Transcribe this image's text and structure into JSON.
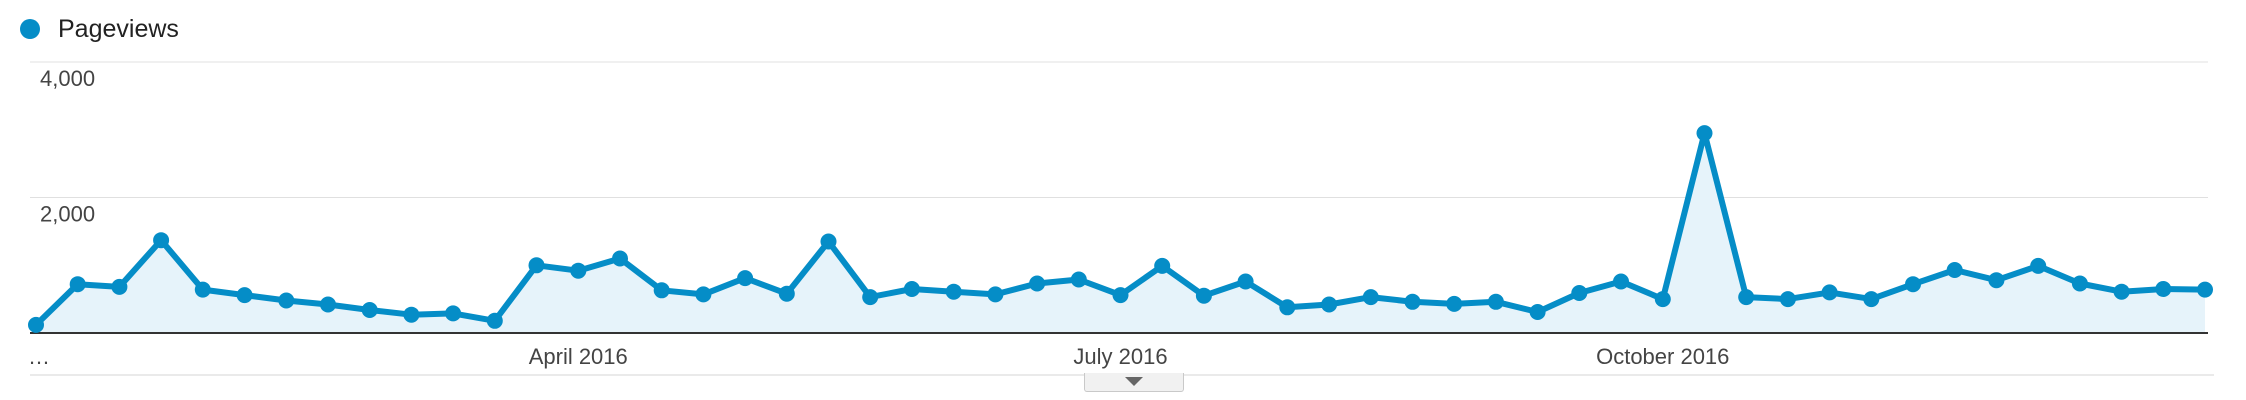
{
  "legend": {
    "label": "Pageviews",
    "color": "#058dc7"
  },
  "colors": {
    "line": "#058dc7",
    "area": "#e6f3fa",
    "grid": "#e0e0e0",
    "baseline": "#333333"
  },
  "chart_data": {
    "type": "area",
    "title": "",
    "xlabel": "",
    "ylabel": "",
    "ylim": [
      0,
      4000
    ],
    "grid": true,
    "legend_position": "top-left",
    "y_ticks": [
      {
        "value": 2000,
        "label": "2,000"
      },
      {
        "value": 4000,
        "label": "4,000"
      }
    ],
    "x_ticks": [
      {
        "index": 0,
        "label": "…",
        "align": "start"
      },
      {
        "index": 13,
        "label": "April 2016",
        "align": "middle"
      },
      {
        "index": 26,
        "label": "July 2016",
        "align": "middle"
      },
      {
        "index": 39,
        "label": "October 2016",
        "align": "middle"
      }
    ],
    "series": [
      {
        "name": "Pageviews",
        "values": [
          120,
          720,
          680,
          1370,
          640,
          560,
          480,
          420,
          340,
          270,
          290,
          180,
          1000,
          920,
          1100,
          630,
          570,
          810,
          580,
          1350,
          530,
          650,
          610,
          570,
          730,
          790,
          560,
          990,
          550,
          760,
          380,
          420,
          530,
          460,
          430,
          460,
          310,
          590,
          760,
          500,
          2950,
          530,
          500,
          600,
          500,
          720,
          930,
          780,
          990,
          730,
          610,
          650,
          640
        ]
      }
    ]
  }
}
